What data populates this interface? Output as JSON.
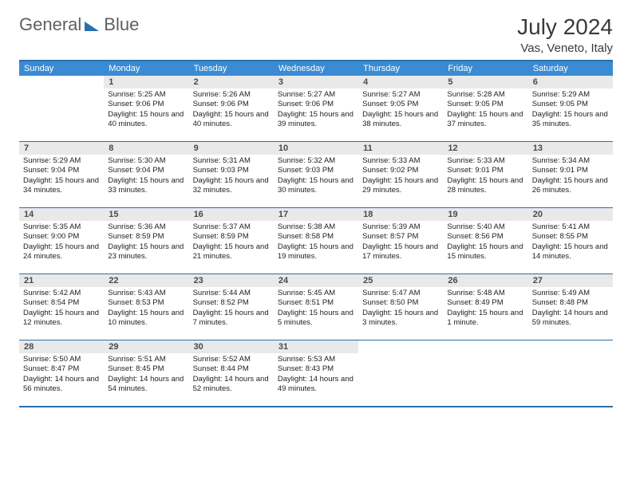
{
  "logo": {
    "part1": "General",
    "part2": "Blue"
  },
  "title": "July 2024",
  "location": "Vas, Veneto, Italy",
  "weekdays": [
    "Sunday",
    "Monday",
    "Tuesday",
    "Wednesday",
    "Thursday",
    "Friday",
    "Saturday"
  ],
  "colors": {
    "header_bar": "#3b8bd4",
    "accent_line": "#2b6fb0",
    "daynum_bg": "#e9e9e9",
    "text": "#3a3a3a"
  },
  "weeks": [
    [
      null,
      {
        "n": "1",
        "sr": "5:25 AM",
        "ss": "9:06 PM",
        "dl": "15 hours and 40 minutes."
      },
      {
        "n": "2",
        "sr": "5:26 AM",
        "ss": "9:06 PM",
        "dl": "15 hours and 40 minutes."
      },
      {
        "n": "3",
        "sr": "5:27 AM",
        "ss": "9:06 PM",
        "dl": "15 hours and 39 minutes."
      },
      {
        "n": "4",
        "sr": "5:27 AM",
        "ss": "9:05 PM",
        "dl": "15 hours and 38 minutes."
      },
      {
        "n": "5",
        "sr": "5:28 AM",
        "ss": "9:05 PM",
        "dl": "15 hours and 37 minutes."
      },
      {
        "n": "6",
        "sr": "5:29 AM",
        "ss": "9:05 PM",
        "dl": "15 hours and 35 minutes."
      }
    ],
    [
      {
        "n": "7",
        "sr": "5:29 AM",
        "ss": "9:04 PM",
        "dl": "15 hours and 34 minutes."
      },
      {
        "n": "8",
        "sr": "5:30 AM",
        "ss": "9:04 PM",
        "dl": "15 hours and 33 minutes."
      },
      {
        "n": "9",
        "sr": "5:31 AM",
        "ss": "9:03 PM",
        "dl": "15 hours and 32 minutes."
      },
      {
        "n": "10",
        "sr": "5:32 AM",
        "ss": "9:03 PM",
        "dl": "15 hours and 30 minutes."
      },
      {
        "n": "11",
        "sr": "5:33 AM",
        "ss": "9:02 PM",
        "dl": "15 hours and 29 minutes."
      },
      {
        "n": "12",
        "sr": "5:33 AM",
        "ss": "9:01 PM",
        "dl": "15 hours and 28 minutes."
      },
      {
        "n": "13",
        "sr": "5:34 AM",
        "ss": "9:01 PM",
        "dl": "15 hours and 26 minutes."
      }
    ],
    [
      {
        "n": "14",
        "sr": "5:35 AM",
        "ss": "9:00 PM",
        "dl": "15 hours and 24 minutes."
      },
      {
        "n": "15",
        "sr": "5:36 AM",
        "ss": "8:59 PM",
        "dl": "15 hours and 23 minutes."
      },
      {
        "n": "16",
        "sr": "5:37 AM",
        "ss": "8:59 PM",
        "dl": "15 hours and 21 minutes."
      },
      {
        "n": "17",
        "sr": "5:38 AM",
        "ss": "8:58 PM",
        "dl": "15 hours and 19 minutes."
      },
      {
        "n": "18",
        "sr": "5:39 AM",
        "ss": "8:57 PM",
        "dl": "15 hours and 17 minutes."
      },
      {
        "n": "19",
        "sr": "5:40 AM",
        "ss": "8:56 PM",
        "dl": "15 hours and 15 minutes."
      },
      {
        "n": "20",
        "sr": "5:41 AM",
        "ss": "8:55 PM",
        "dl": "15 hours and 14 minutes."
      }
    ],
    [
      {
        "n": "21",
        "sr": "5:42 AM",
        "ss": "8:54 PM",
        "dl": "15 hours and 12 minutes."
      },
      {
        "n": "22",
        "sr": "5:43 AM",
        "ss": "8:53 PM",
        "dl": "15 hours and 10 minutes."
      },
      {
        "n": "23",
        "sr": "5:44 AM",
        "ss": "8:52 PM",
        "dl": "15 hours and 7 minutes."
      },
      {
        "n": "24",
        "sr": "5:45 AM",
        "ss": "8:51 PM",
        "dl": "15 hours and 5 minutes."
      },
      {
        "n": "25",
        "sr": "5:47 AM",
        "ss": "8:50 PM",
        "dl": "15 hours and 3 minutes."
      },
      {
        "n": "26",
        "sr": "5:48 AM",
        "ss": "8:49 PM",
        "dl": "15 hours and 1 minute."
      },
      {
        "n": "27",
        "sr": "5:49 AM",
        "ss": "8:48 PM",
        "dl": "14 hours and 59 minutes."
      }
    ],
    [
      {
        "n": "28",
        "sr": "5:50 AM",
        "ss": "8:47 PM",
        "dl": "14 hours and 56 minutes."
      },
      {
        "n": "29",
        "sr": "5:51 AM",
        "ss": "8:45 PM",
        "dl": "14 hours and 54 minutes."
      },
      {
        "n": "30",
        "sr": "5:52 AM",
        "ss": "8:44 PM",
        "dl": "14 hours and 52 minutes."
      },
      {
        "n": "31",
        "sr": "5:53 AM",
        "ss": "8:43 PM",
        "dl": "14 hours and 49 minutes."
      },
      null,
      null,
      null
    ]
  ],
  "labels": {
    "sunrise": "Sunrise:",
    "sunset": "Sunset:",
    "daylight": "Daylight:"
  }
}
